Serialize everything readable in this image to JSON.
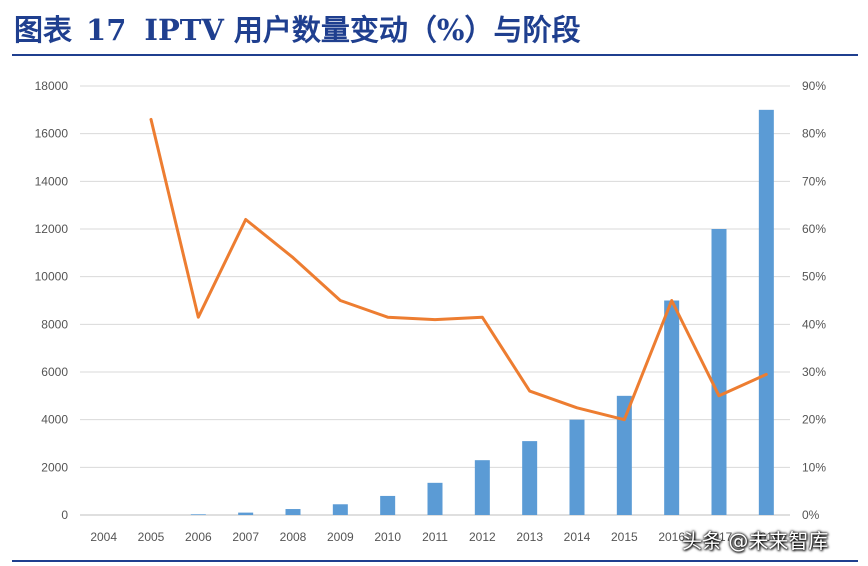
{
  "figure": {
    "label": "图表",
    "number": "17",
    "title": "IPTV 用户数量变动（%）与阶段"
  },
  "colors": {
    "title": "#1f3f8f",
    "bars": "#5b9bd5",
    "line": "#ed7d31",
    "grid": "#d9d9d9"
  },
  "watermark": "头条 @未来智库",
  "chart_data": {
    "type": "bar",
    "categories": [
      "2004",
      "2005",
      "2006",
      "2007",
      "2008",
      "2009",
      "2010",
      "2011",
      "2012",
      "2013",
      "2014",
      "2015",
      "2016",
      "2017",
      "2018"
    ],
    "x_tick_labels": [
      "2004",
      "2005",
      "2006",
      "2007",
      "2008",
      "2009",
      "2010",
      "2011",
      "2012",
      "2013",
      "2014",
      "2015",
      "2016",
      "2017",
      "2018"
    ],
    "series": [
      {
        "type": "bar",
        "axis": "left",
        "values": [
          0,
          0,
          30,
          100,
          250,
          450,
          800,
          1350,
          2300,
          3100,
          4000,
          5000,
          9000,
          12000,
          17000
        ]
      },
      {
        "type": "line",
        "axis": "right",
        "values": [
          null,
          0.83,
          0.415,
          0.62,
          0.54,
          0.45,
          0.415,
          0.41,
          0.415,
          0.26,
          0.225,
          0.2,
          0.45,
          0.25,
          0.295
        ]
      }
    ],
    "y_left": {
      "ylim": [
        0,
        18000
      ],
      "ticks": [
        "0",
        "2000",
        "4000",
        "6000",
        "8000",
        "10000",
        "12000",
        "14000",
        "16000",
        "18000"
      ]
    },
    "y_right": {
      "ylim": [
        0,
        0.9
      ],
      "ticks": [
        "0%",
        "10%",
        "20%",
        "30%",
        "40%",
        "50%",
        "60%",
        "70%",
        "80%",
        "90%"
      ]
    },
    "grid": true,
    "legend": "none"
  }
}
